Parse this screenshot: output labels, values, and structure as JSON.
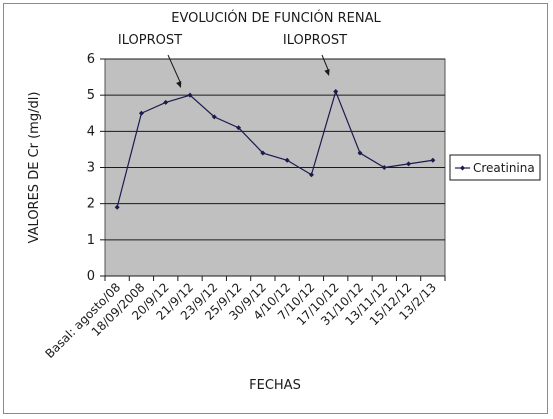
{
  "chart_data": {
    "type": "line",
    "title": "EVOLUCIÓN DE FUNCIÓN RENAL",
    "xlabel": "FECHAS",
    "ylabel": "VALORES DE Cr (mg/dl)",
    "ylim": [
      0,
      6
    ],
    "yticks": [
      "0",
      "1",
      "2",
      "3",
      "4",
      "5",
      "6"
    ],
    "grid": true,
    "legend_position": "right",
    "categories": [
      "Basal: agosto/08",
      "18/09/2008",
      "20/9/12",
      "21/9/12",
      "23/9/12",
      "25/9/12",
      "30/9/12",
      "4/10/12",
      "7/10/12",
      "17/10/12",
      "31/10/12",
      "13/11/12",
      "15/12/12",
      "13/2/13"
    ],
    "series": [
      {
        "name": "Creatinina",
        "values": [
          1.9,
          4.5,
          4.8,
          5.0,
          4.4,
          4.1,
          3.4,
          3.2,
          2.8,
          5.1,
          3.4,
          3.0,
          3.1,
          3.2
        ],
        "color": "#1a1a4e"
      }
    ],
    "annotations": [
      {
        "text": "ILOPROST",
        "target_index": 3
      },
      {
        "text": "ILOPROST",
        "target_index": 9
      }
    ],
    "plot_background": "#c0c0c0"
  }
}
